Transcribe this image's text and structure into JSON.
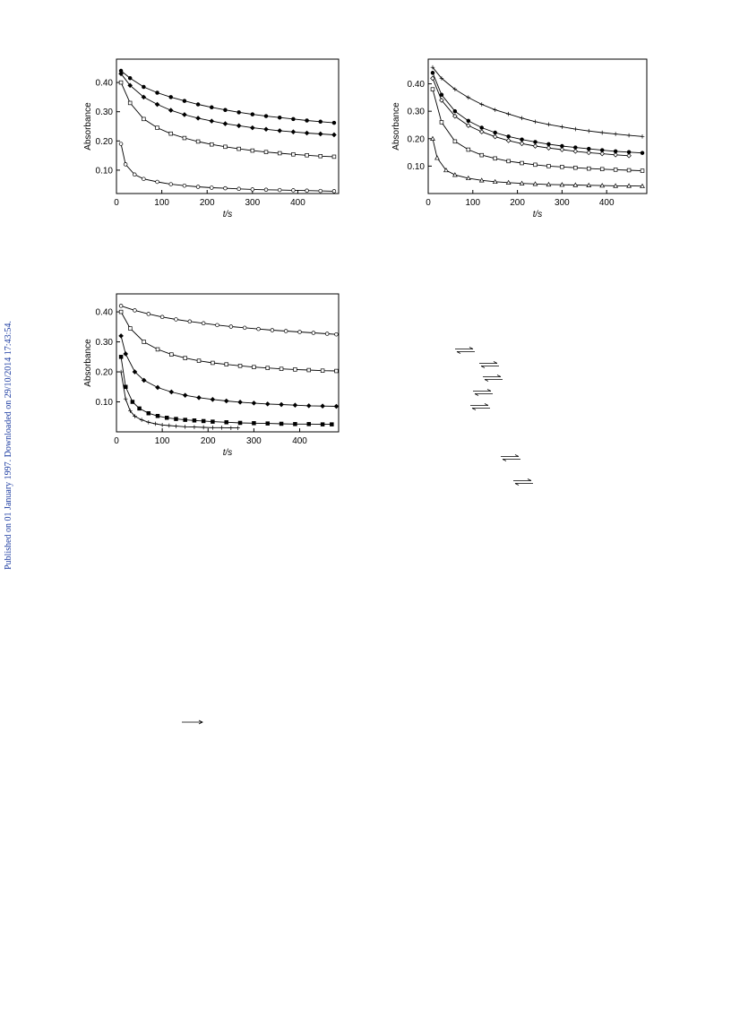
{
  "side_note": "Published on 01 January 1997. Downloaded on 29/10/2014 17:43:54.",
  "chart_data": [
    {
      "id": "a",
      "type": "scatter",
      "xlabel": "t/s",
      "ylabel": "Absorbance",
      "xlim": [
        0,
        490
      ],
      "ylim": [
        0.02,
        0.48
      ],
      "xticks": [
        0,
        100,
        200,
        300,
        400
      ],
      "yticks": [
        0.1,
        0.2,
        0.3,
        0.4
      ],
      "series": [
        {
          "marker": "filled-circle",
          "x": [
            10,
            30,
            60,
            90,
            120,
            150,
            180,
            210,
            240,
            270,
            300,
            330,
            360,
            390,
            420,
            450,
            480
          ],
          "y": [
            0.44,
            0.415,
            0.385,
            0.365,
            0.35,
            0.337,
            0.325,
            0.315,
            0.306,
            0.298,
            0.291,
            0.285,
            0.28,
            0.275,
            0.27,
            0.266,
            0.262
          ]
        },
        {
          "marker": "filled-diamond",
          "x": [
            10,
            30,
            60,
            90,
            120,
            150,
            180,
            210,
            240,
            270,
            300,
            330,
            360,
            390,
            420,
            450,
            480
          ],
          "y": [
            0.43,
            0.39,
            0.35,
            0.325,
            0.305,
            0.29,
            0.278,
            0.268,
            0.259,
            0.252,
            0.245,
            0.24,
            0.235,
            0.231,
            0.227,
            0.224,
            0.221
          ]
        },
        {
          "marker": "open-square",
          "x": [
            10,
            30,
            60,
            90,
            120,
            150,
            180,
            210,
            240,
            270,
            300,
            330,
            360,
            390,
            420,
            450,
            480
          ],
          "y": [
            0.4,
            0.33,
            0.275,
            0.245,
            0.225,
            0.21,
            0.198,
            0.188,
            0.18,
            0.173,
            0.167,
            0.162,
            0.158,
            0.154,
            0.151,
            0.148,
            0.146
          ]
        },
        {
          "marker": "open-circle",
          "x": [
            10,
            20,
            40,
            60,
            90,
            120,
            150,
            180,
            210,
            240,
            270,
            300,
            330,
            360,
            390,
            420,
            450,
            480
          ],
          "y": [
            0.19,
            0.12,
            0.085,
            0.07,
            0.06,
            0.052,
            0.047,
            0.043,
            0.04,
            0.038,
            0.036,
            0.034,
            0.033,
            0.032,
            0.031,
            0.03,
            0.029,
            0.028
          ]
        }
      ]
    },
    {
      "id": "b",
      "type": "scatter",
      "xlabel": "t/s",
      "ylabel": "Absorbance",
      "xlim": [
        0,
        490
      ],
      "ylim": [
        0.0,
        0.49
      ],
      "xticks": [
        0,
        100,
        200,
        300,
        400
      ],
      "yticks": [
        0.1,
        0.2,
        0.3,
        0.4
      ],
      "series": [
        {
          "marker": "plus",
          "x": [
            10,
            30,
            60,
            90,
            120,
            150,
            180,
            210,
            240,
            270,
            300,
            330,
            360,
            390,
            420,
            450,
            480
          ],
          "y": [
            0.46,
            0.42,
            0.38,
            0.35,
            0.325,
            0.305,
            0.29,
            0.275,
            0.262,
            0.252,
            0.243,
            0.235,
            0.228,
            0.222,
            0.217,
            0.212,
            0.208
          ]
        },
        {
          "marker": "filled-circle",
          "x": [
            10,
            30,
            60,
            90,
            120,
            150,
            180,
            210,
            240,
            270,
            300,
            330,
            360,
            390,
            420,
            450,
            480
          ],
          "y": [
            0.44,
            0.36,
            0.3,
            0.265,
            0.24,
            0.222,
            0.208,
            0.197,
            0.188,
            0.18,
            0.173,
            0.168,
            0.163,
            0.158,
            0.154,
            0.151,
            0.148
          ]
        },
        {
          "marker": "open-diamond",
          "x": [
            10,
            30,
            60,
            90,
            120,
            150,
            180,
            210,
            240,
            270,
            300,
            330,
            360,
            390,
            420,
            450
          ],
          "y": [
            0.42,
            0.34,
            0.282,
            0.248,
            0.225,
            0.207,
            0.193,
            0.182,
            0.173,
            0.166,
            0.16,
            0.154,
            0.149,
            0.145,
            0.141,
            0.138
          ]
        },
        {
          "marker": "open-square",
          "x": [
            10,
            30,
            60,
            90,
            120,
            150,
            180,
            210,
            240,
            270,
            300,
            330,
            360,
            390,
            420,
            450,
            480
          ],
          "y": [
            0.38,
            0.26,
            0.19,
            0.16,
            0.14,
            0.128,
            0.118,
            0.111,
            0.105,
            0.1,
            0.097,
            0.094,
            0.091,
            0.089,
            0.087,
            0.085,
            0.083
          ]
        },
        {
          "marker": "open-triangle",
          "x": [
            10,
            20,
            40,
            60,
            90,
            120,
            150,
            180,
            210,
            240,
            270,
            300,
            330,
            360,
            390,
            420,
            450,
            480
          ],
          "y": [
            0.2,
            0.13,
            0.085,
            0.068,
            0.056,
            0.048,
            0.043,
            0.04,
            0.037,
            0.035,
            0.033,
            0.032,
            0.031,
            0.03,
            0.029,
            0.028,
            0.028,
            0.027
          ]
        }
      ]
    },
    {
      "id": "c",
      "type": "scatter",
      "xlabel": "t/s",
      "ylabel": "Absorbance",
      "xlim": [
        0,
        485
      ],
      "ylim": [
        0.0,
        0.46
      ],
      "xticks": [
        0,
        100,
        200,
        300,
        400
      ],
      "yticks": [
        0.1,
        0.2,
        0.3,
        0.4
      ],
      "series": [
        {
          "marker": "open-circle",
          "x": [
            10,
            40,
            70,
            100,
            130,
            160,
            190,
            220,
            250,
            280,
            310,
            340,
            370,
            400,
            430,
            460,
            480
          ],
          "y": [
            0.42,
            0.405,
            0.393,
            0.383,
            0.375,
            0.368,
            0.362,
            0.356,
            0.351,
            0.347,
            0.343,
            0.339,
            0.336,
            0.333,
            0.33,
            0.327,
            0.325
          ]
        },
        {
          "marker": "open-square",
          "x": [
            10,
            30,
            60,
            90,
            120,
            150,
            180,
            210,
            240,
            270,
            300,
            330,
            360,
            390,
            420,
            450,
            480
          ],
          "y": [
            0.4,
            0.345,
            0.3,
            0.275,
            0.258,
            0.246,
            0.237,
            0.23,
            0.225,
            0.22,
            0.216,
            0.213,
            0.21,
            0.208,
            0.206,
            0.204,
            0.203
          ]
        },
        {
          "marker": "filled-diamond",
          "x": [
            10,
            20,
            40,
            60,
            90,
            120,
            150,
            180,
            210,
            240,
            270,
            300,
            330,
            360,
            390,
            420,
            450,
            480
          ],
          "y": [
            0.32,
            0.26,
            0.2,
            0.172,
            0.148,
            0.133,
            0.122,
            0.114,
            0.108,
            0.103,
            0.099,
            0.096,
            0.093,
            0.091,
            0.089,
            0.087,
            0.086,
            0.085
          ]
        },
        {
          "marker": "filled-square",
          "x": [
            10,
            20,
            35,
            50,
            70,
            90,
            110,
            130,
            150,
            170,
            190,
            210,
            240,
            270,
            300,
            330,
            360,
            390,
            420,
            450,
            470
          ],
          "y": [
            0.25,
            0.15,
            0.1,
            0.078,
            0.062,
            0.053,
            0.047,
            0.043,
            0.04,
            0.038,
            0.036,
            0.034,
            0.032,
            0.03,
            0.029,
            0.028,
            0.027,
            0.026,
            0.026,
            0.025,
            0.025
          ]
        },
        {
          "marker": "plus",
          "x": [
            10,
            20,
            30,
            40,
            55,
            70,
            85,
            100,
            115,
            130,
            150,
            170,
            190,
            210,
            230,
            250,
            265
          ],
          "y": [
            0.2,
            0.11,
            0.07,
            0.052,
            0.04,
            0.032,
            0.027,
            0.023,
            0.021,
            0.019,
            0.017,
            0.016,
            0.015,
            0.014,
            0.014,
            0.013,
            0.013
          ]
        }
      ]
    }
  ]
}
